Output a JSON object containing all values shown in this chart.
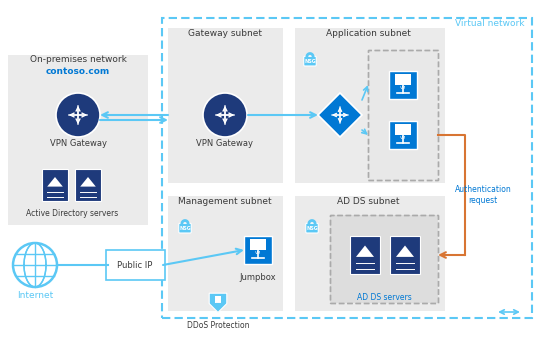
{
  "bg_color": "#ffffff",
  "light_blue": "#5bc8f5",
  "dark_blue": "#1e3a7b",
  "medium_blue": "#0078d4",
  "icon_blue": "#0078d4",
  "box_gray": "#ebebeb",
  "dashed_blue": "#5bc8f5",
  "orange": "#d87533",
  "text_dark": "#3a3a3a",
  "text_blue_label": "#0078d4",
  "on_premises_label": "On-premises network",
  "contoso_label": "contoso.com",
  "vpn_gw_label": "VPN Gateway",
  "ad_label": "Active Directory servers",
  "internet_label": "Internet",
  "public_ip_label": "Public IP",
  "gateway_subnet_label": "Gateway subnet",
  "vpn_gw2_label": "VPN Gateway",
  "mgmt_subnet_label": "Management subnet",
  "jumpbox_label": "Jumpbox",
  "ddos_label": "DDoS Protection",
  "app_subnet_label": "Application subnet",
  "virtual_network_label": "Virtual network",
  "auth_request_label": "Authentication\nrequest",
  "ad_ds_subnet_label": "AD DS subnet",
  "ad_ds_servers_label": "AD DS servers",
  "nsg_label": "NSG"
}
